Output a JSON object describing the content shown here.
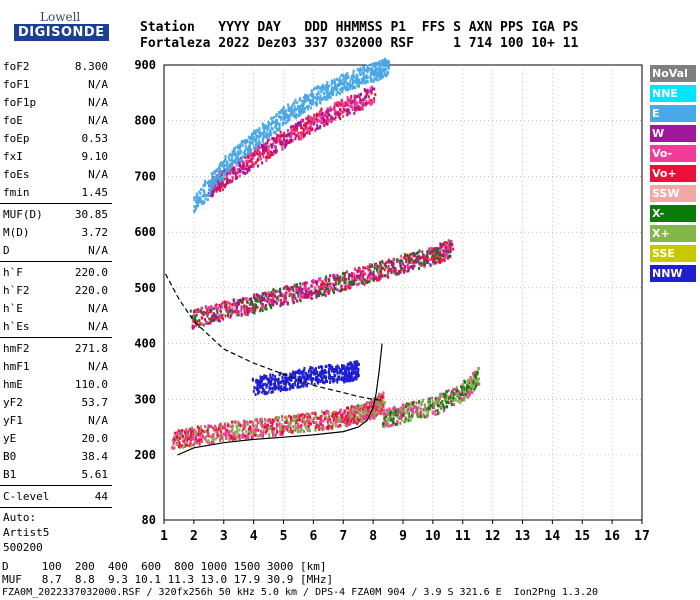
{
  "logo": {
    "top": "Lowell",
    "main": "DIGISONDE"
  },
  "header": {
    "line1": "Station   YYYY DAY   DDD HHMMSS P1  FFS S AXN PPS IGA PS",
    "line2": "Fortaleza 2022 Dez03 337 032000 RSF     1 714 100 10+ 11"
  },
  "params": [
    {
      "k": "foF2",
      "v": "8.300"
    },
    {
      "k": "foF1",
      "v": "N/A"
    },
    {
      "k": "foF1p",
      "v": "N/A"
    },
    {
      "k": "foE",
      "v": "N/A"
    },
    {
      "k": "foEp",
      "v": "0.53"
    },
    {
      "k": "fxI",
      "v": "9.10"
    },
    {
      "k": "foEs",
      "v": "N/A"
    },
    {
      "k": "fmin",
      "v": "1.45"
    },
    {
      "sep": true
    },
    {
      "k": "MUF(D)",
      "v": "30.85"
    },
    {
      "k": "M(D)",
      "v": "3.72"
    },
    {
      "k": "D",
      "v": "N/A"
    },
    {
      "sep": true
    },
    {
      "k": "h`F",
      "v": "220.0"
    },
    {
      "k": "h`F2",
      "v": "220.0"
    },
    {
      "k": "h`E",
      "v": "N/A"
    },
    {
      "k": "h`Es",
      "v": "N/A"
    },
    {
      "sep": true
    },
    {
      "k": "hmF2",
      "v": "271.8"
    },
    {
      "k": "hmF1",
      "v": "N/A"
    },
    {
      "k": "hmE",
      "v": "110.0"
    },
    {
      "k": "yF2",
      "v": "53.7"
    },
    {
      "k": "yF1",
      "v": "N/A"
    },
    {
      "k": "yE",
      "v": "20.0"
    },
    {
      "k": "B0",
      "v": "38.4"
    },
    {
      "k": "B1",
      "v": "5.61"
    },
    {
      "sep": true
    },
    {
      "k": "C-level",
      "v": "44"
    },
    {
      "sep": true
    }
  ],
  "auto": {
    "l1": "Auto:",
    "l2": "Artist5",
    "l3": "500200"
  },
  "legend": [
    {
      "label": "NoVal",
      "color": "#7f7f7f",
      "text": "#ffffff"
    },
    {
      "label": "NNE",
      "color": "#00e5ff",
      "text": "#ffffff"
    },
    {
      "label": "E",
      "color": "#4aa8e6",
      "text": "#ffffff"
    },
    {
      "label": "W",
      "color": "#a0179c",
      "text": "#ffffff"
    },
    {
      "label": "Vo-",
      "color": "#f23c9a",
      "text": "#ffffff"
    },
    {
      "label": "Vo+",
      "color": "#ec0f3a",
      "text": "#ffffff"
    },
    {
      "label": "SSW",
      "color": "#f2a7a7",
      "text": "#ffffff"
    },
    {
      "label": "X-",
      "color": "#0a7a0a",
      "text": "#ffffff"
    },
    {
      "label": "X+",
      "color": "#83b74a",
      "text": "#ffffff"
    },
    {
      "label": "SSE",
      "color": "#c8c800",
      "text": "#ffffff"
    },
    {
      "label": "NNW",
      "color": "#1f1fd0",
      "text": "#ffffff"
    }
  ],
  "chart_data": {
    "type": "scatter",
    "xlim": [
      1,
      17
    ],
    "ylim": [
      80,
      900
    ],
    "xticks": [
      1,
      2,
      3,
      4,
      5,
      6,
      7,
      8,
      9,
      10,
      11,
      12,
      13,
      14,
      15,
      16,
      17
    ],
    "yticks": [
      80,
      200,
      300,
      400,
      500,
      600,
      700,
      800,
      900
    ],
    "traces": [
      {
        "name": "F2 O-trace first hop",
        "x": [
          1.3,
          2,
          3,
          4,
          5,
          6,
          7,
          7.5,
          8,
          8.3
        ],
        "y": [
          228,
          236,
          244,
          250,
          256,
          262,
          270,
          276,
          285,
          300
        ],
        "colors": [
          "#f23c9a",
          "#ec0f3a",
          "#83b74a"
        ]
      },
      {
        "name": "X-trace",
        "x": [
          8.3,
          9,
          10,
          11,
          11.5
        ],
        "y": [
          265,
          278,
          290,
          315,
          345
        ],
        "colors": [
          "#83b74a",
          "#0a7a0a",
          "#f23c9a"
        ]
      },
      {
        "name": "Second hop",
        "x": [
          1.9,
          3,
          4,
          5,
          6,
          7,
          8,
          9,
          10,
          10.6
        ],
        "y": [
          446,
          462,
          474,
          488,
          500,
          515,
          530,
          545,
          560,
          575
        ],
        "colors": [
          "#ec0f3a",
          "#f23c9a",
          "#a0179c",
          "#0a7a0a"
        ]
      },
      {
        "name": "Third hop",
        "x": [
          2.5,
          3,
          4,
          5,
          6,
          7,
          8
        ],
        "y": [
          680,
          700,
          735,
          770,
          800,
          825,
          850
        ],
        "colors": [
          "#ec0f3a",
          "#a0179c",
          "#f23c9a"
        ]
      },
      {
        "name": "E oblique",
        "x": [
          2,
          3,
          4,
          5,
          6,
          7,
          8,
          8.5
        ],
        "y": [
          650,
          720,
          770,
          810,
          845,
          870,
          890,
          900
        ],
        "colors": [
          "#4aa8e6"
        ]
      },
      {
        "name": "NNW spread",
        "x": [
          4,
          5,
          6,
          7,
          7.5
        ],
        "y": [
          325,
          335,
          345,
          350,
          355
        ],
        "colors": [
          "#1f1fd0"
        ]
      }
    ],
    "profile_solid": {
      "x": [
        1.45,
        2,
        3,
        4,
        5,
        6,
        7,
        7.5,
        7.8,
        8,
        8.1,
        8.2,
        8.3
      ],
      "y": [
        200,
        213,
        222,
        228,
        232,
        236,
        242,
        250,
        262,
        285,
        310,
        350,
        400
      ]
    },
    "profile_dashed": {
      "x": [
        1.05,
        1.5,
        2,
        3,
        4,
        5,
        6,
        7,
        7.5,
        8,
        8.3
      ],
      "y": [
        525,
        480,
        440,
        390,
        365,
        345,
        325,
        312,
        305,
        300,
        298
      ]
    }
  },
  "footer": {
    "d_label": "D     100  200  400  600  800 1000 1500 3000 [km]",
    "muf_label": "MUF   8.7  8.8  9.3 10.1 11.3 13.0 17.9 30.9 [MHz]",
    "file": "FZA0M_2022337032000.RSF / 320fx256h 50 kHz 5.0 km / DPS-4 FZA0M 904 / 3.9 S 321.6 E  Ion2Png 1.3.20"
  }
}
